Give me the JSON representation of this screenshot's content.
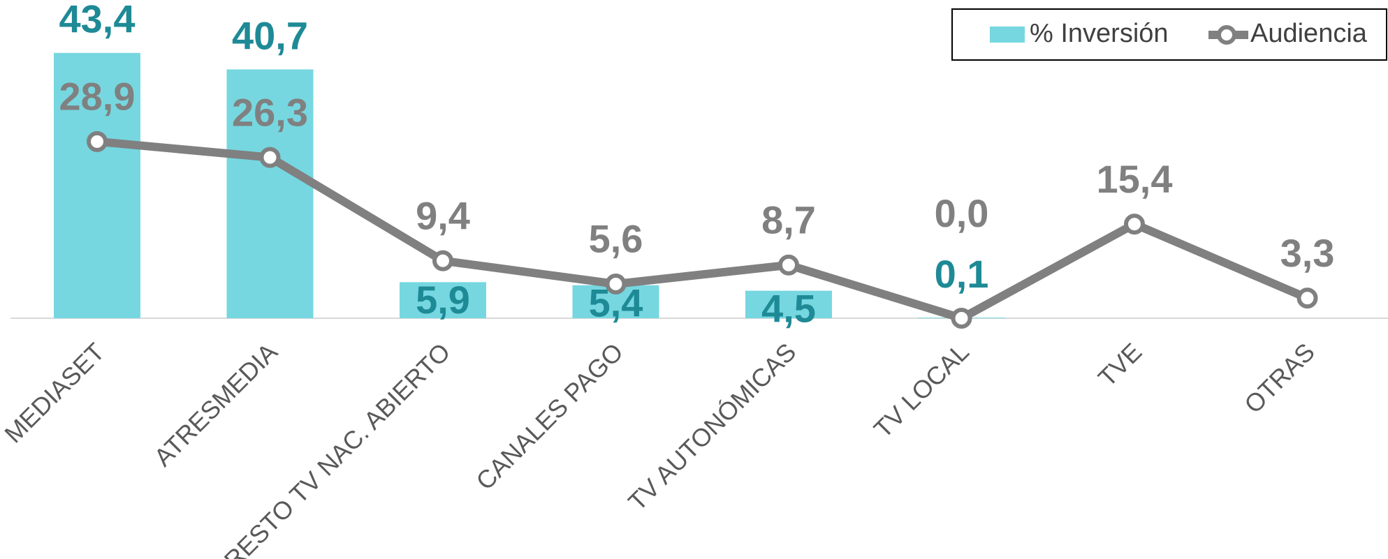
{
  "chart_data": {
    "type": "bar",
    "categories": [
      "MEDIASET",
      "ATRESMEDIA",
      "RESTO TV NAC. ABIERTO",
      "CANALES PAGO",
      "TV AUTONÓMICAS",
      "TV LOCAL",
      "TVE",
      "OTRAS"
    ],
    "series": [
      {
        "name": "% Inversión",
        "type": "bar",
        "color": "#76d7e0",
        "label_color": "#1e8a96",
        "values": [
          43.4,
          40.7,
          5.9,
          5.4,
          4.5,
          0.1,
          null,
          null
        ],
        "value_labels": [
          "43,4",
          "40,7",
          "5,9",
          "5,4",
          "4,5",
          "0,1",
          null,
          null
        ]
      },
      {
        "name": "Audiencia",
        "type": "line",
        "color": "#808080",
        "label_color": "#808080",
        "values": [
          28.9,
          26.3,
          9.4,
          5.6,
          8.7,
          0.0,
          15.4,
          3.3
        ],
        "value_labels": [
          "28,9",
          "26,3",
          "9,4",
          "5,6",
          "8,7",
          "0,0",
          "15,4",
          "3,3"
        ]
      }
    ],
    "legend": "top-right"
  }
}
